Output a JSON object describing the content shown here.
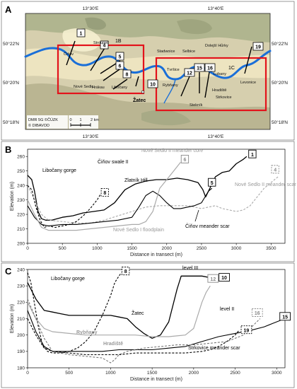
{
  "panel_letters": [
    "A",
    "B",
    "C"
  ],
  "map": {
    "lon_top": [
      "13°30'E",
      "13°40'E"
    ],
    "lon_bottom": [
      "13°30'E",
      "13°40'E"
    ],
    "lat_left": [
      "50°22'N",
      "50°20'N",
      "50°18'N"
    ],
    "lat_right": [
      "50°22'N",
      "50°20'N",
      "50°18'N"
    ],
    "box_labels": [
      "1B",
      "1C"
    ],
    "town_main": "Žatec",
    "places": [
      "Čiňov",
      "Stroupeč",
      "Nové Sedlo",
      "Hrákau",
      "Libočany",
      "Stadwoice",
      "Selbice",
      "Dolejší Hůrky",
      "Tvršice",
      "Rybňany",
      "Lubany",
      "Hradiště",
      "Strkovice",
      "Stekník",
      "Levonice"
    ],
    "transects": [
      "1",
      "4",
      "5",
      "6",
      "8",
      "10",
      "12",
      "15",
      "16",
      "19"
    ],
    "credit1": "DMR 5G ©ČÚZK",
    "credit2": "© DIBAVOD",
    "scale_ticks": [
      "0",
      "1",
      "2 km"
    ],
    "colors": {
      "river": "#1a6fd8",
      "box": "#e3131b"
    }
  },
  "chart_data": [
    {
      "type": "line",
      "panel": "B",
      "xlabel": "Distance in transect (m)",
      "ylabel": "Elevation (m)",
      "xlim": [
        0,
        3700
      ],
      "ylim": [
        200,
        265
      ],
      "xticks": [
        0,
        500,
        1000,
        1500,
        2000,
        2500,
        3000,
        3500
      ],
      "yticks": [
        200,
        210,
        220,
        230,
        240,
        250,
        260
      ],
      "series": [
        {
          "name": "1",
          "color": "#000000",
          "dash": "none",
          "width": 1.3,
          "x": [
            0,
            60,
            100,
            150,
            200,
            260,
            350,
            500,
            650,
            800,
            950,
            1100,
            1250,
            1400,
            1550,
            1700,
            1850,
            2000,
            2150,
            2300,
            2450,
            2520,
            2560,
            2620,
            2700,
            2800,
            2900,
            3000,
            3100,
            3150
          ],
          "y": [
            247,
            244,
            236,
            222,
            217,
            216,
            216,
            218,
            219,
            221,
            222,
            223,
            228,
            237,
            241,
            243,
            244,
            244,
            245,
            244,
            242,
            237,
            232,
            238,
            246,
            249,
            250,
            255,
            258,
            260
          ]
        },
        {
          "name": "4",
          "color": "#aaaaaa",
          "dash": "3,2",
          "width": 1.1,
          "x": [
            0,
            100,
            200,
            300,
            500,
            700,
            900,
            1100,
            1300,
            1500,
            1700,
            1900,
            2100,
            2300,
            2500,
            2600,
            2700,
            2800,
            2900,
            3000,
            3100,
            3200,
            3300,
            3400,
            3500,
            3600
          ],
          "y": [
            240,
            230,
            220,
            216,
            215,
            214,
            214,
            216,
            219,
            222,
            225,
            226,
            226,
            226,
            224,
            225,
            226,
            224,
            223,
            222,
            223,
            226,
            232,
            238,
            242,
            246
          ]
        },
        {
          "name": "5",
          "color": "#000000",
          "dash": "none",
          "width": 1.1,
          "x": [
            0,
            100,
            200,
            300,
            500,
            700,
            900,
            1100,
            1300,
            1500,
            1600,
            1700,
            1800,
            1900,
            2000,
            2100,
            2200,
            2300,
            2400,
            2500,
            2550,
            2600,
            2650
          ],
          "y": [
            226,
            218,
            213,
            212,
            213,
            213,
            214,
            215,
            216,
            218,
            225,
            233,
            236,
            233,
            228,
            224,
            224,
            225,
            226,
            228,
            232,
            236,
            238
          ]
        },
        {
          "name": "6",
          "color": "#aaaaaa",
          "dash": "none",
          "width": 1.2,
          "x": [
            0,
            100,
            200,
            300,
            500,
            700,
            900,
            1100,
            1300,
            1500,
            1600,
            1700,
            1800,
            1850,
            1900,
            2000,
            2100,
            2200
          ],
          "y": [
            230,
            220,
            211,
            209,
            209,
            209,
            210,
            211,
            212,
            213,
            213,
            215,
            222,
            230,
            238,
            244,
            250,
            256
          ]
        },
        {
          "name": "8",
          "color": "#000000",
          "dash": "3,2",
          "width": 1.1,
          "x": [
            0,
            60,
            120,
            180,
            240,
            300,
            400,
            500,
            600,
            700,
            800,
            900,
            1000,
            1050
          ],
          "y": [
            240,
            237,
            225,
            216,
            211,
            212,
            211,
            212,
            213,
            215,
            219,
            224,
            230,
            234
          ]
        }
      ],
      "end_labels": [
        "1",
        "4",
        "5",
        "6",
        "8"
      ],
      "annotations": [
        "Nové Sedlo II meander core",
        "Čiňov swale II",
        "Libočany gorge",
        "Zlatník Hill",
        "Nové Sedlo II meander scar",
        "Čiňov meander scar",
        "Nové Sedlo I floodplain"
      ]
    },
    {
      "type": "line",
      "panel": "C",
      "xlabel": "Distance in transect (m)",
      "ylabel": "Elevation (m)",
      "xlim": [
        0,
        3100
      ],
      "ylim": [
        180,
        240
      ],
      "xticks": [
        0,
        500,
        1000,
        1500,
        2000,
        2500,
        3000
      ],
      "yticks": [
        180,
        190,
        200,
        210,
        220,
        230,
        240
      ],
      "series": [
        {
          "name": "8",
          "color": "#000000",
          "dash": "3,2",
          "width": 1.1,
          "x": [
            0,
            40,
            80,
            130,
            180,
            240,
            300,
            400,
            500,
            600,
            700,
            800,
            900,
            1000,
            1050,
            1100,
            1130
          ],
          "y": [
            238,
            232,
            220,
            205,
            194,
            190,
            189,
            189,
            190,
            192,
            196,
            202,
            212,
            224,
            232,
            236,
            238
          ]
        },
        {
          "name": "10",
          "color": "#000000",
          "dash": "none",
          "width": 1.3,
          "x": [
            0,
            100,
            200,
            300,
            400,
            500,
            600,
            700,
            800,
            900,
            1000,
            1100,
            1200,
            1300,
            1400,
            1500,
            1550,
            1600,
            1700,
            1800,
            1850,
            1900,
            2000,
            2100,
            2200,
            2300
          ],
          "y": [
            232,
            222,
            215,
            214,
            213,
            212,
            212,
            212,
            212,
            212,
            212,
            211,
            210,
            205,
            201,
            198,
            199,
            200,
            208,
            228,
            236,
            236,
            236,
            236,
            235,
            235
          ]
        },
        {
          "name": "12",
          "color": "#aaaaaa",
          "dash": "none",
          "width": 1.2,
          "x": [
            0,
            100,
            200,
            300,
            500,
            700,
            900,
            1100,
            1300,
            1500,
            1700,
            1900,
            2000,
            2050,
            2100,
            2150,
            2200
          ],
          "y": [
            220,
            210,
            204,
            202,
            201,
            200,
            200,
            200,
            200,
            199,
            199,
            200,
            204,
            212,
            220,
            226,
            230
          ]
        },
        {
          "name": "15",
          "color": "#000000",
          "dash": "none",
          "width": 1.1,
          "x": [
            0,
            100,
            200,
            300,
            400,
            500,
            700,
            900,
            1100,
            1300,
            1500,
            1700,
            1900,
            2100,
            2300,
            2500,
            2700,
            2850,
            2950,
            3050
          ],
          "y": [
            215,
            202,
            193,
            190,
            190,
            190,
            190,
            190,
            191,
            191,
            191,
            192,
            193,
            196,
            199,
            201,
            203,
            205,
            207,
            209
          ]
        },
        {
          "name": "16",
          "color": "#777777",
          "dash": "3,2",
          "width": 1.1,
          "x": [
            0,
            100,
            200,
            300,
            500,
            700,
            900,
            1000,
            1050,
            1100,
            1200,
            1400,
            1600,
            1800,
            2000,
            2200,
            2400,
            2600,
            2700,
            2800
          ],
          "y": [
            222,
            210,
            198,
            190,
            188,
            187,
            186,
            183,
            185,
            188,
            190,
            192,
            193,
            194,
            194,
            195,
            196,
            200,
            205,
            210
          ]
        },
        {
          "name": "19",
          "color": "#000000",
          "dash": "3,2",
          "width": 1.1,
          "x": [
            0,
            100,
            200,
            300,
            500,
            700,
            900,
            1100,
            1300,
            1500,
            1700,
            1900,
            2100,
            2200,
            2300,
            2400,
            2500,
            2550
          ],
          "y": [
            210,
            200,
            192,
            190,
            189,
            188,
            188,
            188,
            189,
            189,
            189,
            189,
            190,
            191,
            193,
            196,
            200,
            203
          ]
        }
      ],
      "end_labels": [
        "8",
        "10",
        "12",
        "15",
        "16",
        "19"
      ],
      "annotations": [
        "level III",
        "Libočany gorge",
        "Žatec",
        "level II",
        "Rybňany",
        "Hradiště",
        "Strkovice meander scar"
      ]
    }
  ]
}
